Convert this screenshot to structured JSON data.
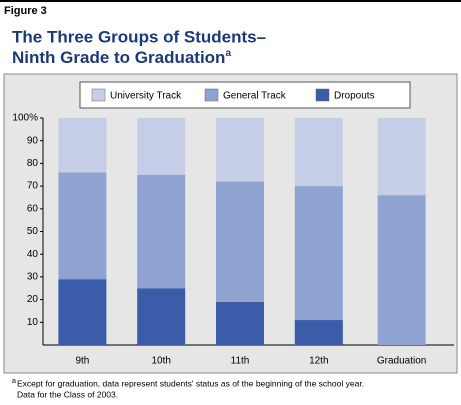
{
  "chart_data": {
    "type": "stacked_bar",
    "figure_label": "Figure 3",
    "title_lines": [
      "The Three Groups of Students–",
      "Ninth Grade to Graduation"
    ],
    "title_note": "a",
    "categories": [
      "9th",
      "10th",
      "11th",
      "12th",
      "Graduation"
    ],
    "series": [
      {
        "name": "University Track",
        "color": "#c6cee7",
        "values": [
          24,
          25,
          28,
          30,
          34
        ]
      },
      {
        "name": "General Track",
        "color": "#8fa3d0",
        "values": [
          47,
          50,
          53,
          59,
          66
        ]
      },
      {
        "name": "Dropouts",
        "color": "#3b5ca9",
        "values": [
          29,
          25,
          19,
          11,
          0
        ]
      }
    ],
    "ylim": [
      0,
      100
    ],
    "yticks": [
      {
        "value": 100,
        "label": "100%"
      },
      90,
      80,
      70,
      60,
      50,
      40,
      30,
      20,
      10
    ],
    "footnote_marker": "a",
    "footnote_lines": [
      "Except for graduation, data represent students' status as of the beginning of the school year.",
      "Data for the Class of 2003."
    ]
  }
}
